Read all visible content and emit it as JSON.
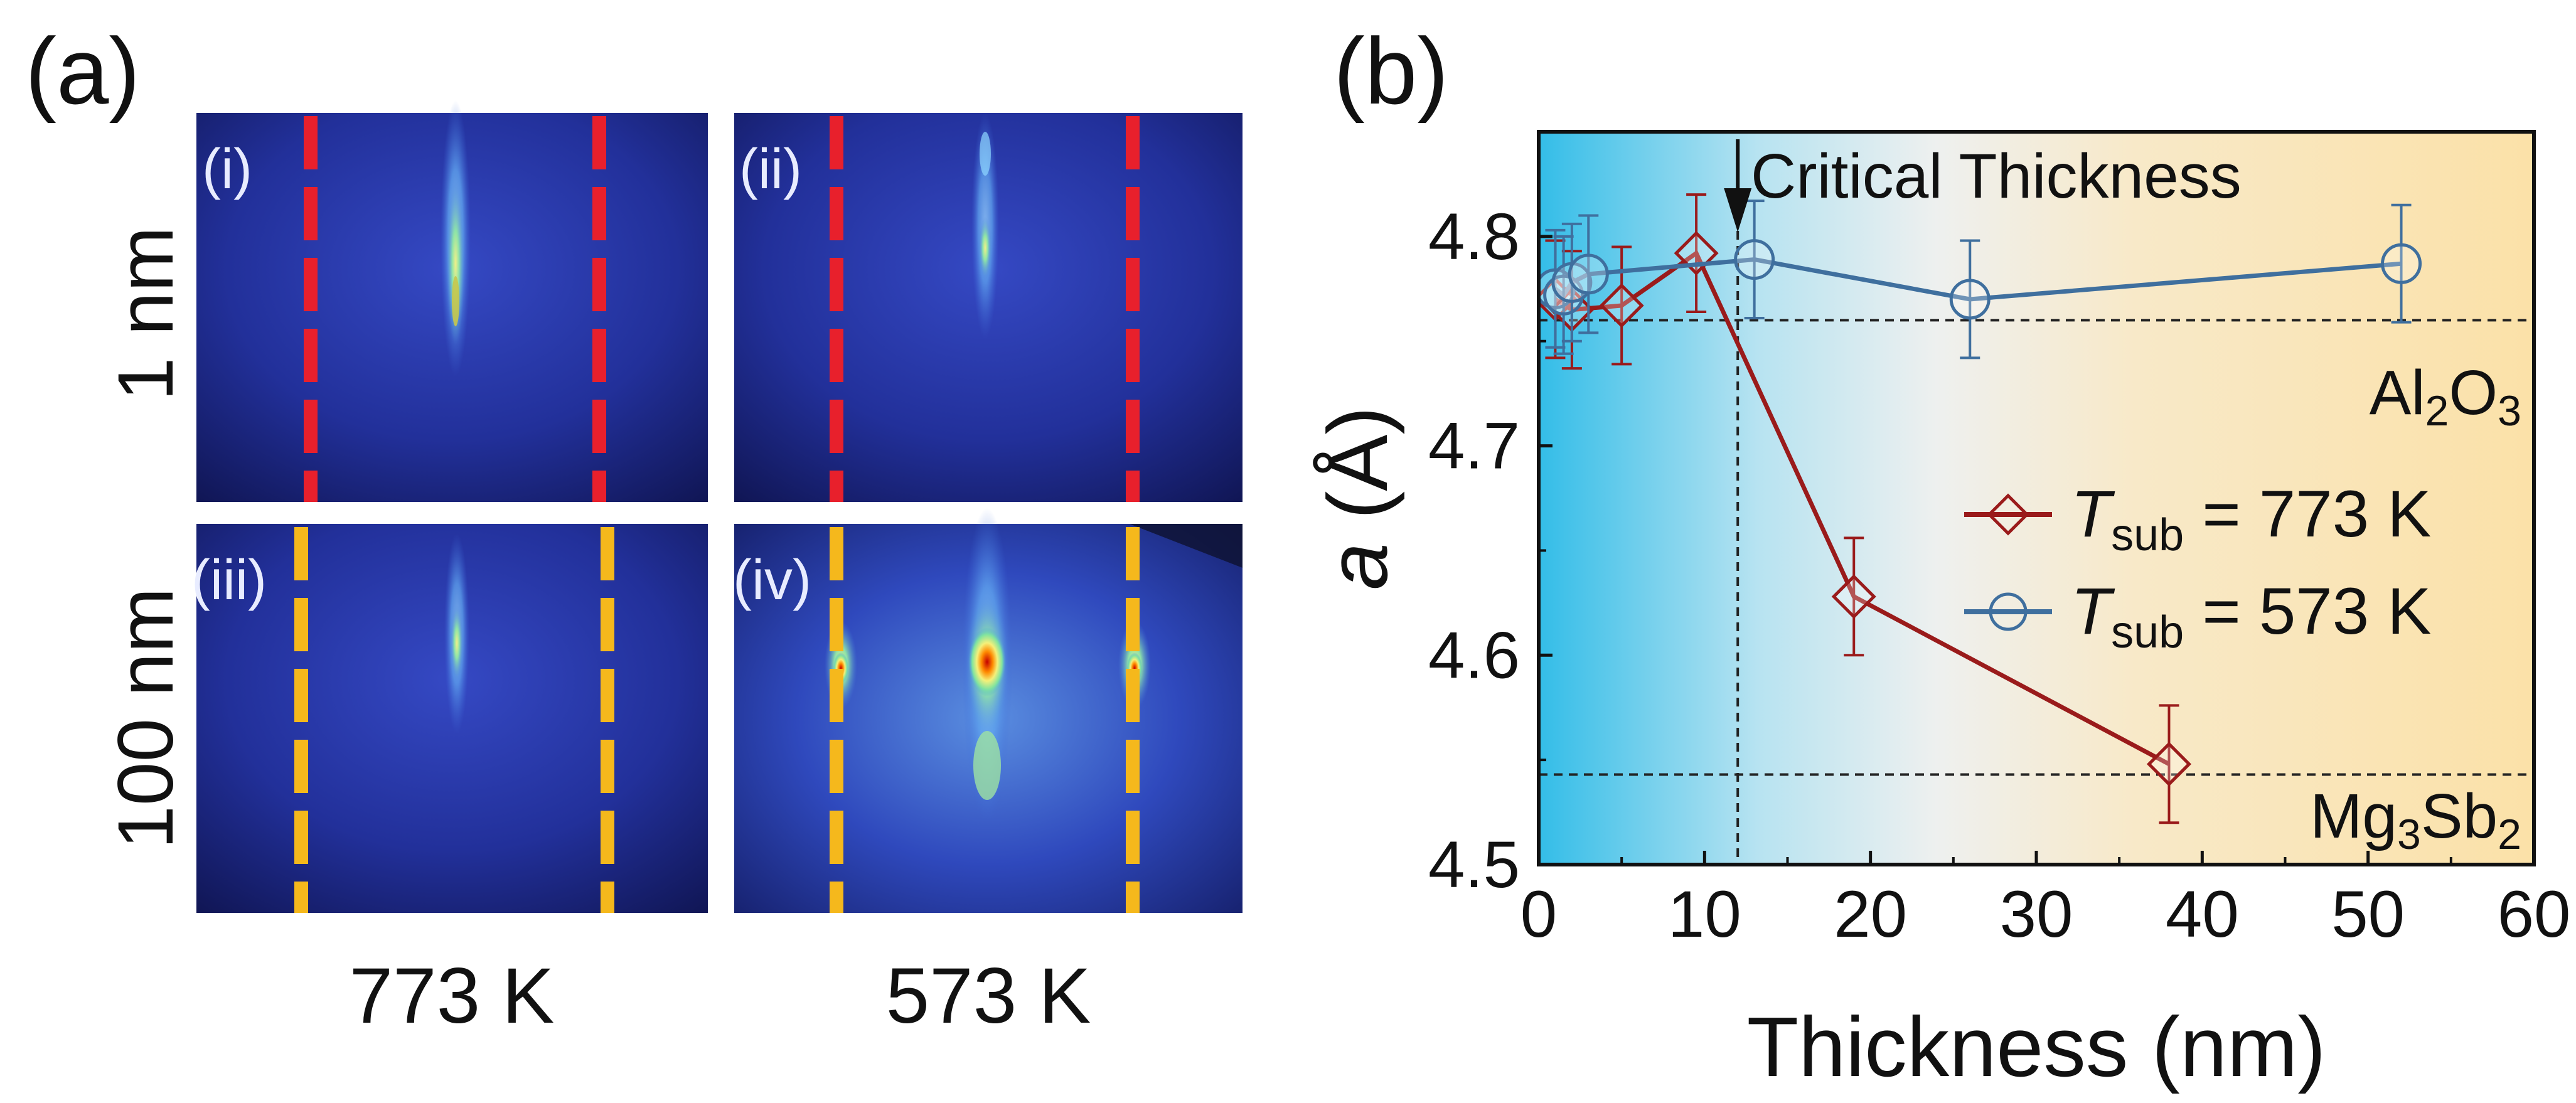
{
  "panel_a": {
    "label": "(a)",
    "row_labels": [
      "1 nm",
      "100 nm"
    ],
    "col_labels": [
      "773 K",
      "573 K"
    ],
    "panel_labels": [
      "(i)",
      "(ii)",
      "(iii)",
      "(iv)"
    ],
    "colors": {
      "red_dash": "#e8202c",
      "yellow_dash": "#f5b81c"
    }
  },
  "chart_data": {
    "type": "line",
    "panel_label": "(b)",
    "title": "",
    "xlabel": "Thickness (nm)",
    "ylabel_italic": "a",
    "ylabel_unit": " (Å)",
    "xlim": [
      0,
      60
    ],
    "ylim": [
      4.5,
      4.85
    ],
    "xticks": [
      0,
      10,
      20,
      30,
      40,
      50,
      60
    ],
    "yticks": [
      4.5,
      4.6,
      4.7,
      4.8
    ],
    "xtick_labels": [
      "0",
      "10",
      "20",
      "30",
      "40",
      "50",
      "60"
    ],
    "ytick_labels": [
      "4.5",
      "4.6",
      "4.7",
      "4.8"
    ],
    "grid": false,
    "series": [
      {
        "name": "T_sub = 773 K",
        "legend_T": "T",
        "legend_sub": "sub",
        "legend_rest": " = 773 K",
        "marker": "diamond",
        "color": "#9a1b1b",
        "points": [
          [
            1,
            4.77
          ],
          [
            2,
            4.765
          ],
          [
            5,
            4.767
          ],
          [
            9.5,
            4.792
          ],
          [
            19,
            4.628
          ],
          [
            38,
            4.548
          ]
        ],
        "yerr": 0.028
      },
      {
        "name": "T_sub = 573 K",
        "legend_T": "T",
        "legend_sub": "sub",
        "legend_rest": " = 573 K",
        "marker": "circle",
        "color": "#3f6f9e",
        "points": [
          [
            1,
            4.775
          ],
          [
            1.5,
            4.772
          ],
          [
            2,
            4.778
          ],
          [
            3,
            4.782
          ],
          [
            13,
            4.789
          ],
          [
            26,
            4.77
          ],
          [
            52,
            4.787
          ]
        ],
        "yerr": 0.028
      }
    ],
    "reference_lines": [
      {
        "axis": "y",
        "value": 4.76,
        "label_main": "Al",
        "label_sub1": "2",
        "label_mid": "O",
        "label_sub2": "3",
        "label_end": ""
      },
      {
        "axis": "y",
        "value": 4.543,
        "label_main": "Mg",
        "label_sub1": "3",
        "label_mid": "Sb",
        "label_sub2": "2",
        "label_end": ""
      }
    ],
    "critical_thickness": {
      "x": 12,
      "label": "Critical Thickness"
    },
    "legend_position": "center-right",
    "background_gradient": [
      "#33bde8",
      "#eef0ef",
      "#fbe3b0"
    ]
  }
}
